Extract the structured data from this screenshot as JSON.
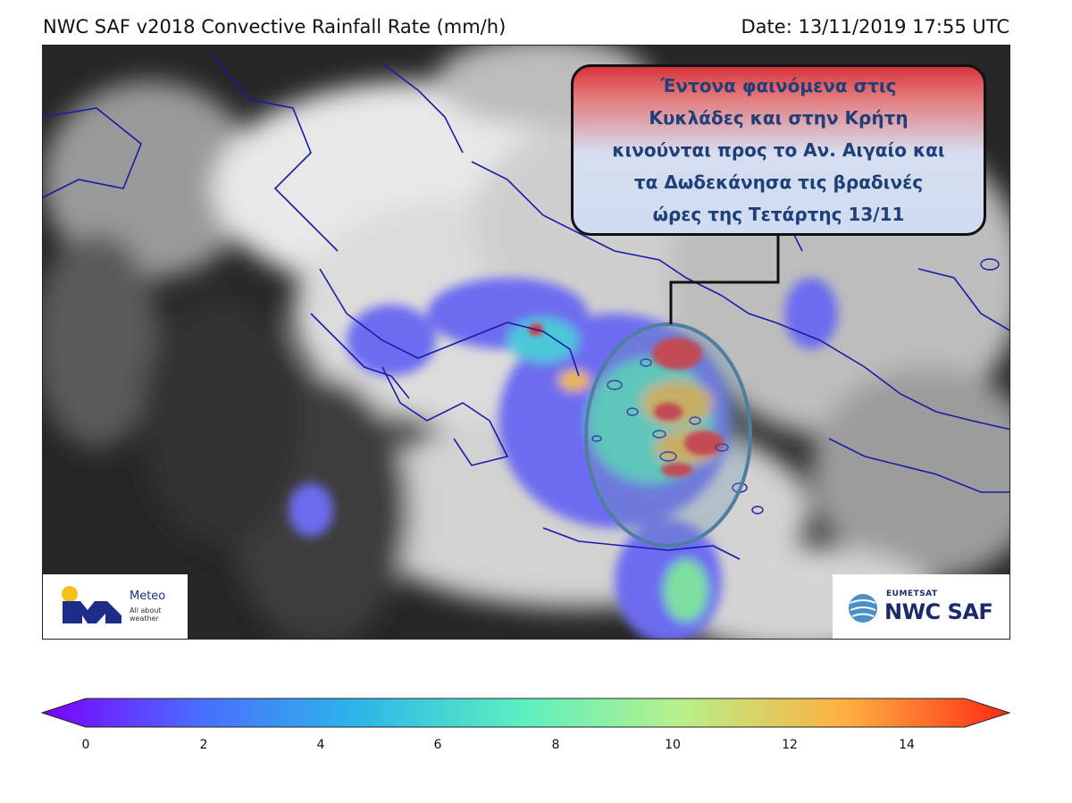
{
  "header": {
    "title": "NWC SAF v2018 Convective Rainfall Rate (mm/h)",
    "date": "Date: 13/11/2019 17:55 UTC"
  },
  "callout": {
    "text": "Έντονα φαινόμενα στις\nΚυκλάδες και στην Κρήτη\nκινούνται προς το Αν. Αιγαίο και\nτα Δωδεκάνησα τις βραδινές\nώρες της Τετάρτης 13/11"
  },
  "logos": {
    "meteo_name": "Meteo",
    "meteo_tagline": "All about weather",
    "eumetsat": "EUMETSAT",
    "nwcsaf": "NWC SAF"
  },
  "colorbar": {
    "unit": "mm/h",
    "range": [
      0,
      15
    ],
    "ticks": [
      "0",
      "2",
      "4",
      "6",
      "8",
      "10",
      "12",
      "14"
    ],
    "colormap": "rainbow",
    "extend": "both",
    "colors": [
      "#7d00ff",
      "#4a6cff",
      "#2cb8e8",
      "#5ef0c0",
      "#b8f08a",
      "#ffb040",
      "#ff2a14"
    ]
  },
  "map": {
    "background": "satellite infrared (grayscale)",
    "coastline_color": "#1a1aa8",
    "highlight_ellipse_color": "#4e7fa0"
  }
}
